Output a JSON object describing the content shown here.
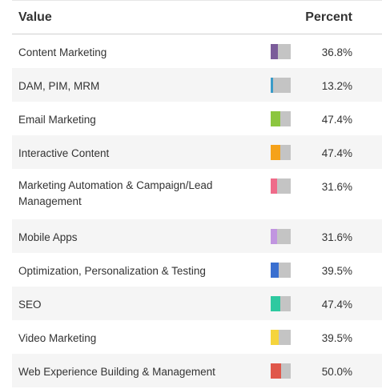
{
  "header": {
    "value_label": "Value",
    "percent_label": "Percent"
  },
  "chart_data": {
    "type": "table",
    "columns": [
      "Value",
      "Percent"
    ],
    "rows": [
      {
        "label": "Content Marketing",
        "percent_text": "36.8%",
        "value": 36.8,
        "color": "#7b5c9a"
      },
      {
        "label": "DAM, PIM, MRM",
        "percent_text": "13.2%",
        "value": 13.2,
        "color": "#3a9bc8"
      },
      {
        "label": "Email Marketing",
        "percent_text": "47.4%",
        "value": 47.4,
        "color": "#8cc63f"
      },
      {
        "label": "Interactive Content",
        "percent_text": "47.4%",
        "value": 47.4,
        "color": "#f5a21a"
      },
      {
        "label": "Marketing Automation & Campaign/Lead Management",
        "percent_text": "31.6%",
        "value": 31.6,
        "color": "#ef6b8a"
      },
      {
        "label": "Mobile Apps",
        "percent_text": "31.6%",
        "value": 31.6,
        "color": "#c195e0"
      },
      {
        "label": "Optimization, Personalization & Testing",
        "percent_text": "39.5%",
        "value": 39.5,
        "color": "#3a6fd0"
      },
      {
        "label": "SEO",
        "percent_text": "47.4%",
        "value": 47.4,
        "color": "#2ec9a0"
      },
      {
        "label": "Video Marketing",
        "percent_text": "39.5%",
        "value": 39.5,
        "color": "#f5d43c"
      },
      {
        "label": "Web Experience Building & Management",
        "percent_text": "50.0%",
        "value": 50.0,
        "color": "#e0574a"
      }
    ]
  }
}
